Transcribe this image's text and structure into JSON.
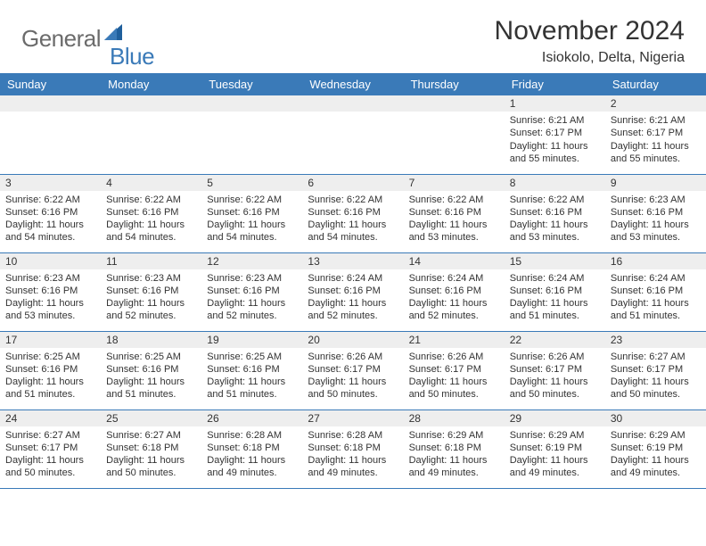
{
  "brand": {
    "part1": "General",
    "part2": "Blue"
  },
  "title": "November 2024",
  "location": "Isiokolo, Delta, Nigeria",
  "colors": {
    "header_bg": "#3a7ab8",
    "header_fg": "#ffffff",
    "daynum_bg": "#eeeeee",
    "row_border": "#3a7ab8",
    "brand_gray": "#6b6b6b",
    "brand_blue": "#3a7ab8",
    "text": "#333333",
    "background": "#ffffff"
  },
  "day_headers": [
    "Sunday",
    "Monday",
    "Tuesday",
    "Wednesday",
    "Thursday",
    "Friday",
    "Saturday"
  ],
  "weeks": [
    [
      null,
      null,
      null,
      null,
      null,
      {
        "n": "1",
        "sunrise": "Sunrise: 6:21 AM",
        "sunset": "Sunset: 6:17 PM",
        "daylight": "Daylight: 11 hours and 55 minutes."
      },
      {
        "n": "2",
        "sunrise": "Sunrise: 6:21 AM",
        "sunset": "Sunset: 6:17 PM",
        "daylight": "Daylight: 11 hours and 55 minutes."
      }
    ],
    [
      {
        "n": "3",
        "sunrise": "Sunrise: 6:22 AM",
        "sunset": "Sunset: 6:16 PM",
        "daylight": "Daylight: 11 hours and 54 minutes."
      },
      {
        "n": "4",
        "sunrise": "Sunrise: 6:22 AM",
        "sunset": "Sunset: 6:16 PM",
        "daylight": "Daylight: 11 hours and 54 minutes."
      },
      {
        "n": "5",
        "sunrise": "Sunrise: 6:22 AM",
        "sunset": "Sunset: 6:16 PM",
        "daylight": "Daylight: 11 hours and 54 minutes."
      },
      {
        "n": "6",
        "sunrise": "Sunrise: 6:22 AM",
        "sunset": "Sunset: 6:16 PM",
        "daylight": "Daylight: 11 hours and 54 minutes."
      },
      {
        "n": "7",
        "sunrise": "Sunrise: 6:22 AM",
        "sunset": "Sunset: 6:16 PM",
        "daylight": "Daylight: 11 hours and 53 minutes."
      },
      {
        "n": "8",
        "sunrise": "Sunrise: 6:22 AM",
        "sunset": "Sunset: 6:16 PM",
        "daylight": "Daylight: 11 hours and 53 minutes."
      },
      {
        "n": "9",
        "sunrise": "Sunrise: 6:23 AM",
        "sunset": "Sunset: 6:16 PM",
        "daylight": "Daylight: 11 hours and 53 minutes."
      }
    ],
    [
      {
        "n": "10",
        "sunrise": "Sunrise: 6:23 AM",
        "sunset": "Sunset: 6:16 PM",
        "daylight": "Daylight: 11 hours and 53 minutes."
      },
      {
        "n": "11",
        "sunrise": "Sunrise: 6:23 AM",
        "sunset": "Sunset: 6:16 PM",
        "daylight": "Daylight: 11 hours and 52 minutes."
      },
      {
        "n": "12",
        "sunrise": "Sunrise: 6:23 AM",
        "sunset": "Sunset: 6:16 PM",
        "daylight": "Daylight: 11 hours and 52 minutes."
      },
      {
        "n": "13",
        "sunrise": "Sunrise: 6:24 AM",
        "sunset": "Sunset: 6:16 PM",
        "daylight": "Daylight: 11 hours and 52 minutes."
      },
      {
        "n": "14",
        "sunrise": "Sunrise: 6:24 AM",
        "sunset": "Sunset: 6:16 PM",
        "daylight": "Daylight: 11 hours and 52 minutes."
      },
      {
        "n": "15",
        "sunrise": "Sunrise: 6:24 AM",
        "sunset": "Sunset: 6:16 PM",
        "daylight": "Daylight: 11 hours and 51 minutes."
      },
      {
        "n": "16",
        "sunrise": "Sunrise: 6:24 AM",
        "sunset": "Sunset: 6:16 PM",
        "daylight": "Daylight: 11 hours and 51 minutes."
      }
    ],
    [
      {
        "n": "17",
        "sunrise": "Sunrise: 6:25 AM",
        "sunset": "Sunset: 6:16 PM",
        "daylight": "Daylight: 11 hours and 51 minutes."
      },
      {
        "n": "18",
        "sunrise": "Sunrise: 6:25 AM",
        "sunset": "Sunset: 6:16 PM",
        "daylight": "Daylight: 11 hours and 51 minutes."
      },
      {
        "n": "19",
        "sunrise": "Sunrise: 6:25 AM",
        "sunset": "Sunset: 6:16 PM",
        "daylight": "Daylight: 11 hours and 51 minutes."
      },
      {
        "n": "20",
        "sunrise": "Sunrise: 6:26 AM",
        "sunset": "Sunset: 6:17 PM",
        "daylight": "Daylight: 11 hours and 50 minutes."
      },
      {
        "n": "21",
        "sunrise": "Sunrise: 6:26 AM",
        "sunset": "Sunset: 6:17 PM",
        "daylight": "Daylight: 11 hours and 50 minutes."
      },
      {
        "n": "22",
        "sunrise": "Sunrise: 6:26 AM",
        "sunset": "Sunset: 6:17 PM",
        "daylight": "Daylight: 11 hours and 50 minutes."
      },
      {
        "n": "23",
        "sunrise": "Sunrise: 6:27 AM",
        "sunset": "Sunset: 6:17 PM",
        "daylight": "Daylight: 11 hours and 50 minutes."
      }
    ],
    [
      {
        "n": "24",
        "sunrise": "Sunrise: 6:27 AM",
        "sunset": "Sunset: 6:17 PM",
        "daylight": "Daylight: 11 hours and 50 minutes."
      },
      {
        "n": "25",
        "sunrise": "Sunrise: 6:27 AM",
        "sunset": "Sunset: 6:18 PM",
        "daylight": "Daylight: 11 hours and 50 minutes."
      },
      {
        "n": "26",
        "sunrise": "Sunrise: 6:28 AM",
        "sunset": "Sunset: 6:18 PM",
        "daylight": "Daylight: 11 hours and 49 minutes."
      },
      {
        "n": "27",
        "sunrise": "Sunrise: 6:28 AM",
        "sunset": "Sunset: 6:18 PM",
        "daylight": "Daylight: 11 hours and 49 minutes."
      },
      {
        "n": "28",
        "sunrise": "Sunrise: 6:29 AM",
        "sunset": "Sunset: 6:18 PM",
        "daylight": "Daylight: 11 hours and 49 minutes."
      },
      {
        "n": "29",
        "sunrise": "Sunrise: 6:29 AM",
        "sunset": "Sunset: 6:19 PM",
        "daylight": "Daylight: 11 hours and 49 minutes."
      },
      {
        "n": "30",
        "sunrise": "Sunrise: 6:29 AM",
        "sunset": "Sunset: 6:19 PM",
        "daylight": "Daylight: 11 hours and 49 minutes."
      }
    ]
  ]
}
